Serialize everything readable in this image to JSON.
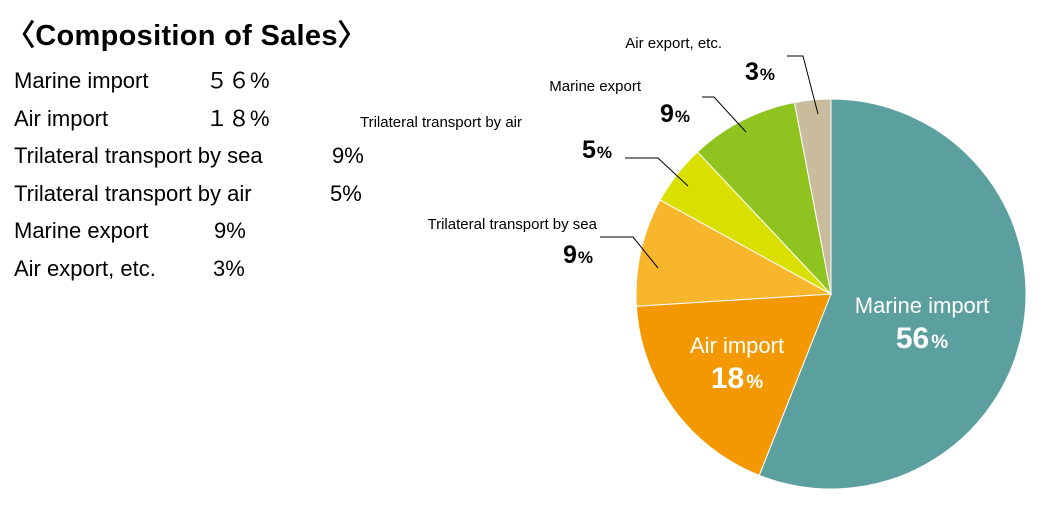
{
  "title": "〈Composition of Sales〉",
  "list": [
    {
      "label": "Marine import",
      "value": "５６%"
    },
    {
      "label": "Air import",
      "value": "１８%"
    },
    {
      "label": "Trilateral transport by sea",
      "value": "9%"
    },
    {
      "label": "Trilateral transport by air",
      "value": "5%"
    },
    {
      "label": "Marine export",
      "value": "9%"
    },
    {
      "label": "Air export, etc.",
      "value": "3%"
    }
  ],
  "chart_data": {
    "type": "pie",
    "title": "〈Composition of Sales〉",
    "start": "12 o'clock",
    "direction": "clockwise",
    "slices": [
      {
        "label": "Marine import",
        "value": 56,
        "number": "56",
        "unit": "%",
        "color": "#5b9f9f",
        "label_position": "inside"
      },
      {
        "label": "Air import",
        "value": 18,
        "number": "18",
        "unit": "%",
        "color": "#f39800",
        "label_position": "inside"
      },
      {
        "label": "Trilateral transport by sea",
        "value": 9,
        "number": "9",
        "unit": "%",
        "color": "#f8b62d",
        "label_position": "outside"
      },
      {
        "label": "Trilateral transport by air",
        "value": 5,
        "number": "5",
        "unit": "%",
        "color": "#d9e000",
        "label_position": "outside"
      },
      {
        "label": "Marine export",
        "value": 9,
        "number": "9",
        "unit": "%",
        "color": "#8fc31f",
        "label_position": "outside"
      },
      {
        "label": "Air export, etc.",
        "value": 3,
        "number": "3",
        "unit": "%",
        "color": "#c9bc9c",
        "label_position": "outside"
      }
    ]
  }
}
